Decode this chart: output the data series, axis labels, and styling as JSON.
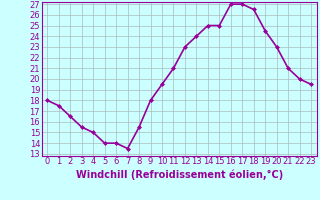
{
  "x": [
    0,
    1,
    2,
    3,
    4,
    5,
    6,
    7,
    8,
    9,
    10,
    11,
    12,
    13,
    14,
    15,
    16,
    17,
    18,
    19,
    20,
    21,
    22,
    23
  ],
  "y": [
    18,
    17.5,
    16.5,
    15.5,
    15,
    14,
    14,
    13.5,
    15.5,
    18,
    19.5,
    21,
    23,
    24,
    25,
    25,
    27,
    27,
    26.5,
    24.5,
    23,
    21,
    20,
    19.5
  ],
  "line_color": "#990099",
  "marker": "D",
  "marker_size": 2.0,
  "bg_color": "#ccffff",
  "grid_color": "#aabbbb",
  "xlabel": "Windchill (Refroidissement éolien,°C)",
  "xlabel_color": "#990099",
  "tick_color": "#990099",
  "spine_color": "#990099",
  "ylim": [
    13,
    27
  ],
  "xlim": [
    -0.5,
    23.5
  ],
  "yticks": [
    13,
    14,
    15,
    16,
    17,
    18,
    19,
    20,
    21,
    22,
    23,
    24,
    25,
    26,
    27
  ],
  "xticks": [
    0,
    1,
    2,
    3,
    4,
    5,
    6,
    7,
    8,
    9,
    10,
    11,
    12,
    13,
    14,
    15,
    16,
    17,
    18,
    19,
    20,
    21,
    22,
    23
  ],
  "linewidth": 1.2,
  "tick_fontsize": 6.0,
  "xlabel_fontsize": 7.0
}
